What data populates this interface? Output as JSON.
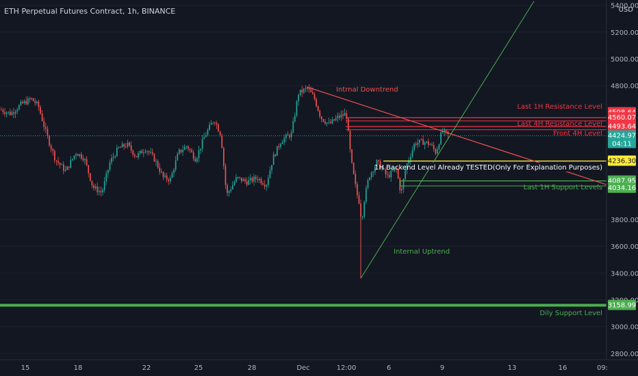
{
  "header": {
    "title": "ETH Perpetual Futures Contract, 1h, BINANCE",
    "currency": "USD"
  },
  "colors": {
    "background": "#131722",
    "up": "#26a69a",
    "down": "#ef5350",
    "resistance": "#f23645",
    "support": "#4caf50",
    "backend": "#ffeb3b"
  },
  "chart_data": {
    "type": "candlestick",
    "title": "ETH Perpetual Futures Contract, 1h, BINANCE",
    "y_axis": {
      "ticks": [
        5400,
        5200,
        5000,
        4800,
        3800,
        3600,
        3400,
        3200,
        3000,
        2800
      ],
      "tick_labels": [
        "5400.00",
        "5200.00",
        "5000.00",
        "4800.00",
        "3800.00",
        "3600.00",
        "3400.00",
        "3200.00",
        "3000.00",
        "2800.00"
      ],
      "ylim": [
        2790,
        5400
      ],
      "unit": "USD"
    },
    "x_axis": {
      "tick_labels": [
        "15",
        "18",
        "22",
        "25",
        "28",
        "Dec",
        "12:00",
        "6",
        "9",
        "13",
        "16",
        "09:"
      ]
    },
    "price_path": [
      [
        0,
        4620
      ],
      [
        15,
        4590
      ],
      [
        30,
        4660
      ],
      [
        45,
        4700
      ],
      [
        55,
        4650
      ],
      [
        68,
        4420
      ],
      [
        80,
        4250
      ],
      [
        95,
        4160
      ],
      [
        110,
        4300
      ],
      [
        122,
        4260
      ],
      [
        135,
        4040
      ],
      [
        148,
        4000
      ],
      [
        160,
        4230
      ],
      [
        172,
        4330
      ],
      [
        185,
        4360
      ],
      [
        198,
        4270
      ],
      [
        212,
        4330
      ],
      [
        225,
        4250
      ],
      [
        238,
        4110
      ],
      [
        248,
        4100
      ],
      [
        260,
        4300
      ],
      [
        272,
        4350
      ],
      [
        285,
        4250
      ],
      [
        298,
        4420
      ],
      [
        312,
        4550
      ],
      [
        322,
        4430
      ],
      [
        330,
        3980
      ],
      [
        345,
        4110
      ],
      [
        360,
        4080
      ],
      [
        375,
        4110
      ],
      [
        388,
        4060
      ],
      [
        398,
        4260
      ],
      [
        410,
        4390
      ],
      [
        425,
        4440
      ],
      [
        435,
        4740
      ],
      [
        448,
        4780
      ],
      [
        458,
        4710
      ],
      [
        468,
        4560
      ],
      [
        480,
        4510
      ],
      [
        492,
        4560
      ],
      [
        505,
        4590
      ],
      [
        512,
        4240
      ],
      [
        520,
        4000
      ],
      [
        528,
        3860
      ],
      [
        538,
        4120
      ],
      [
        550,
        4230
      ],
      [
        565,
        4120
      ],
      [
        578,
        4180
      ],
      [
        585,
        3990
      ],
      [
        592,
        4190
      ],
      [
        605,
        4370
      ],
      [
        618,
        4380
      ],
      [
        628,
        4360
      ],
      [
        636,
        4300
      ],
      [
        645,
        4460
      ],
      [
        655,
        4425
      ]
    ],
    "price_labels": [
      {
        "value": 4598.64,
        "label": "4598.64",
        "kind": "resistance"
      },
      {
        "value": 4560.07,
        "label": "4560.07",
        "kind": "resistance"
      },
      {
        "value": 4493.64,
        "label": "4493.64",
        "kind": "resistance"
      },
      {
        "value": 4424.97,
        "label": "4424.97",
        "kind": "current",
        "sub": "04:11"
      },
      {
        "value": 4236.3,
        "label": "4236.30",
        "kind": "backend"
      },
      {
        "value": 4087.95,
        "label": "4087.95",
        "kind": "support"
      },
      {
        "value": 4034.16,
        "label": "4034.16",
        "kind": "support"
      },
      {
        "value": 3158.99,
        "label": "3158.99",
        "kind": "support"
      }
    ],
    "annotations": {
      "last_1h_resistance": "Last 1H Resistance Level",
      "last_4h_resistance": "Last 4H Resistance Level",
      "front_4h": "Front 4H Level",
      "backend": "1H Backend Level Already TESTED(Only For Explanation Purposes)",
      "last_1h_support": "Last 1H Support Levels",
      "daily_support": "Dily Support Level",
      "internal_downtrend": "Intrnal Downtrend",
      "internal_uptrend": "Internal Uptrend"
    }
  }
}
